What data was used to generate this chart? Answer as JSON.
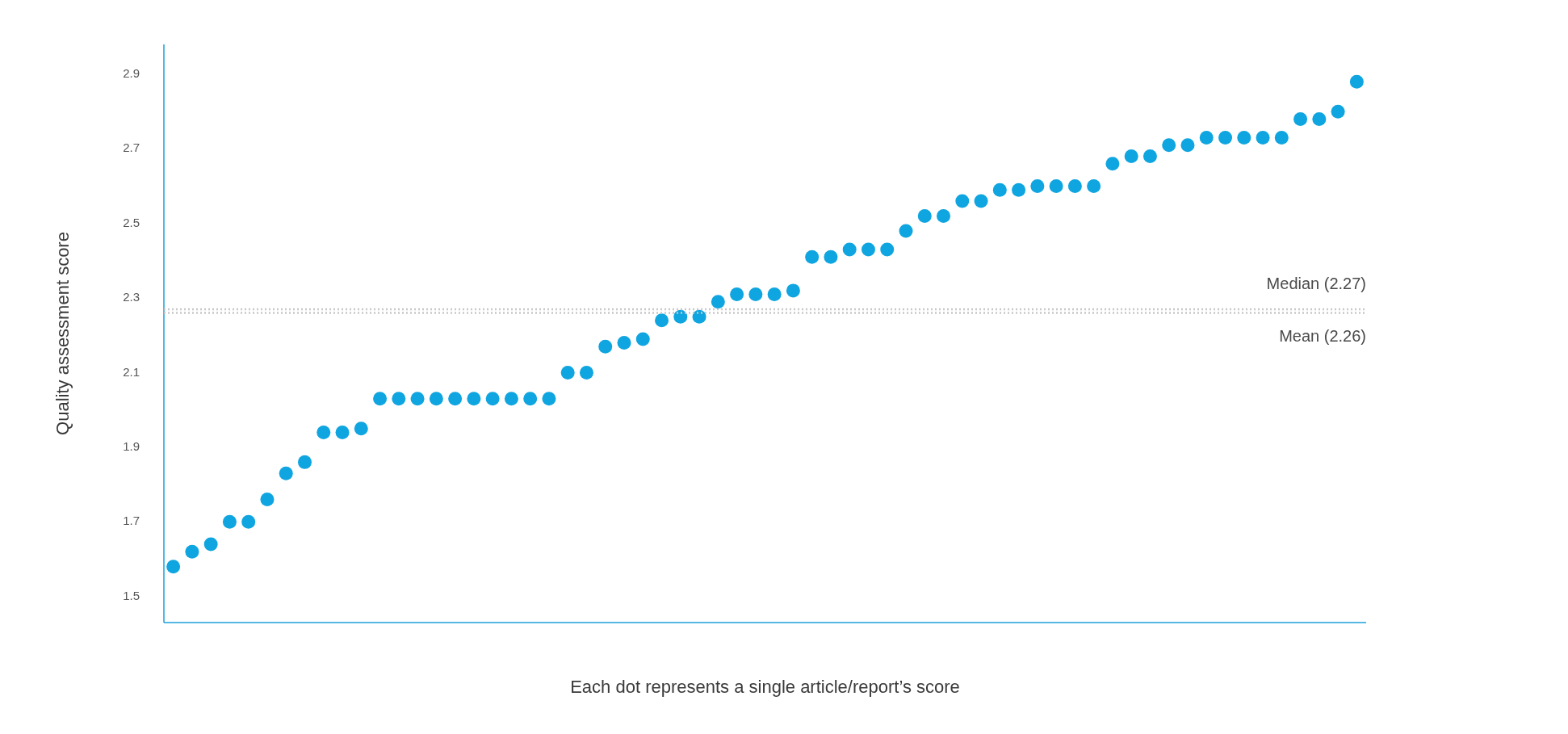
{
  "chart_data": {
    "type": "scatter",
    "xlabel": "Each dot represents a single article/report’s score",
    "ylabel": "Quality assessment score",
    "categories": [
      null,
      null,
      null,
      null,
      null,
      null,
      null,
      null,
      null,
      null,
      null,
      null,
      null,
      null,
      null,
      null,
      null,
      null,
      null,
      null,
      null,
      null,
      null,
      null,
      null,
      null,
      null,
      null,
      null,
      null,
      null,
      null,
      null,
      null,
      null,
      null,
      null,
      null,
      null,
      null,
      null,
      null,
      null,
      null,
      null,
      null,
      null,
      null,
      null,
      null,
      null,
      null,
      null,
      null,
      null,
      null,
      null,
      null,
      null,
      null,
      null,
      null,
      null,
      null
    ],
    "series": [
      {
        "color": "#0ea5e0",
        "values": [
          1.58,
          1.62,
          1.64,
          1.7,
          1.7,
          1.76,
          1.83,
          1.86,
          1.94,
          1.94,
          1.95,
          2.03,
          2.03,
          2.03,
          2.03,
          2.03,
          2.03,
          2.03,
          2.03,
          2.03,
          2.03,
          2.1,
          2.1,
          2.17,
          2.18,
          2.19,
          2.24,
          2.25,
          2.25,
          2.29,
          2.31,
          2.31,
          2.31,
          2.32,
          2.41,
          2.41,
          2.43,
          2.43,
          2.43,
          2.48,
          2.52,
          2.52,
          2.56,
          2.56,
          2.59,
          2.59,
          2.6,
          2.6,
          2.6,
          2.6,
          2.66,
          2.68,
          2.68,
          2.71,
          2.71,
          2.73,
          2.73,
          2.73,
          2.73,
          2.73,
          2.78,
          2.78,
          2.8,
          2.88
        ]
      }
    ],
    "ylim": [
      1.43,
      2.98
    ],
    "yticks": [
      1.5,
      1.7,
      1.9,
      2.1,
      2.3,
      2.5,
      2.7,
      2.9
    ],
    "ref_lines": [
      {
        "axis": "y",
        "value": 2.27,
        "label": "Median (2.27)",
        "color": "#c8c8c8",
        "line_style": "dotted"
      },
      {
        "axis": "y",
        "value": 2.26,
        "label": "Mean (2.26)",
        "color": "#c8c8c8",
        "line_style": "dotted"
      }
    ],
    "grid": false,
    "legend": false,
    "marker": "circle",
    "tick_labels": "y"
  }
}
